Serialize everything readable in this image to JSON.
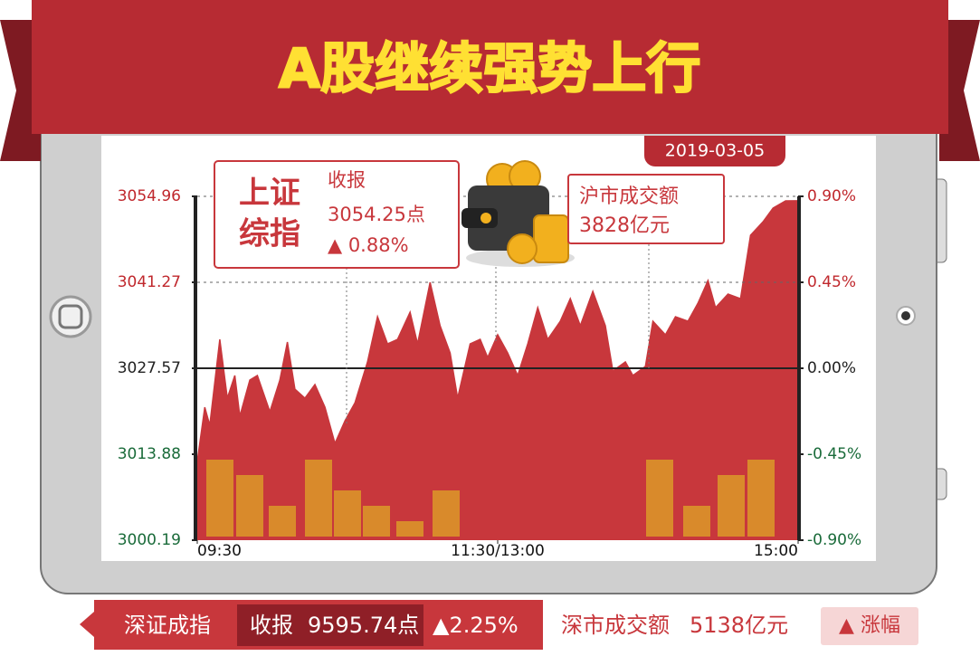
{
  "chart_data": {
    "type": "area",
    "title": "A股继续强势上行",
    "date": "2019-03-05",
    "color": "#c8373c",
    "x": [
      0,
      3,
      5,
      9,
      12,
      15,
      17,
      21,
      24,
      29,
      33,
      36,
      39,
      43,
      47,
      51,
      55,
      59,
      63,
      68,
      72,
      76,
      80,
      85,
      88,
      93,
      97,
      101,
      104,
      109,
      113,
      116,
      120,
      124,
      128,
      132,
      136,
      140,
      145,
      149,
      153,
      158,
      163,
      166,
      171,
      174,
      179,
      182,
      187,
      191,
      196,
      200,
      204,
      207,
      212,
      217,
      221,
      226,
      230,
      235,
      240
    ],
    "values": [
      3012.72,
      3021.37,
      3018.49,
      3032.18,
      3022.81,
      3026.42,
      3019.93,
      3025.7,
      3026.42,
      3020.65,
      3025.7,
      3031.75,
      3024.26,
      3022.81,
      3024.98,
      3021.37,
      3015.61,
      3019.21,
      3022.09,
      3028.58,
      3035.79,
      3031.46,
      3032.18,
      3036.51,
      3031.46,
      3041.27,
      3034.35,
      3030.02,
      3022.81,
      3031.46,
      3032.18,
      3029.3,
      3032.91,
      3030.02,
      3026.42,
      3031.46,
      3037.23,
      3032.18,
      3035.07,
      3038.67,
      3034.35,
      3039.82,
      3034.35,
      3027.14,
      3028.58,
      3026.42,
      3027.86,
      3035.07,
      3032.91,
      3035.79,
      3035.07,
      3037.95,
      3041.55,
      3037.23,
      3039.39,
      3038.67,
      3048.76,
      3050.92,
      3053.09,
      3054.24,
      3054.25
    ],
    "xlim": [
      0,
      240
    ],
    "xticks": [
      {
        "value": 0,
        "label": "09:30"
      },
      {
        "value": 120,
        "label": "11:30/13:00"
      },
      {
        "value": 240,
        "label": "15:00"
      }
    ],
    "ylim": [
      3000.19,
      3054.96
    ],
    "yticks": [
      3000.19,
      3013.88,
      3027.57,
      3041.27,
      3054.96
    ],
    "y2lim": [
      -0.9,
      0.9
    ],
    "y2ticks": [
      {
        "value": -0.9,
        "label": "-0.90%"
      },
      {
        "value": -0.45,
        "label": "-0.45%"
      },
      {
        "value": 0,
        "label": "0.00%"
      },
      {
        "value": 0.45,
        "label": "0.45%"
      },
      {
        "value": 0.9,
        "label": "0.90%"
      }
    ]
  },
  "sh_panel": {
    "name_line1": "上证",
    "name_line2": "综指",
    "close_label": "收报",
    "close": "3054.25点",
    "change": "▲ 0.88%"
  },
  "sh_volume": {
    "label": "沪市成交额",
    "value": "3828亿元"
  },
  "sz_bar": {
    "name": "深证成指",
    "close_label": "收报",
    "close": "9595.74点",
    "change": "▲2.25%",
    "volume_label": "深市成交额",
    "volume": "5138亿元",
    "button": "▲ 涨幅"
  }
}
